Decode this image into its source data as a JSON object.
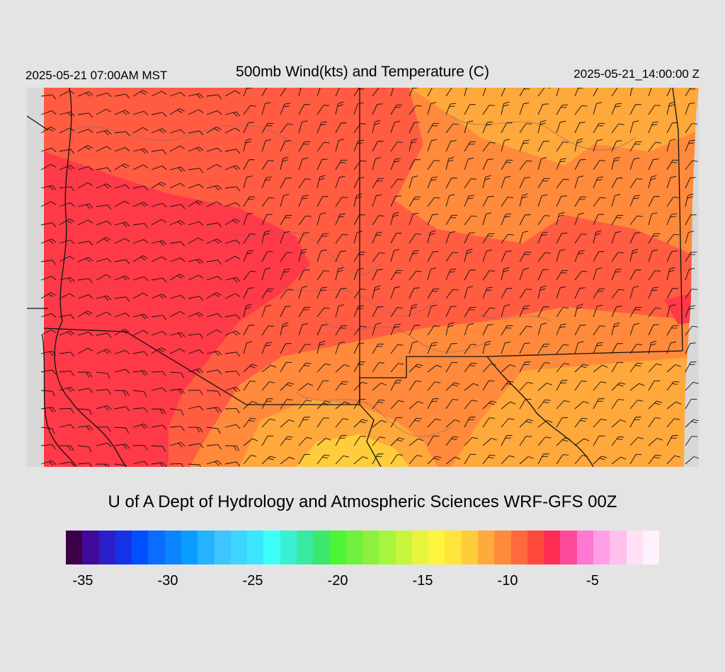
{
  "header": {
    "valid_local": "2025-05-21 07:00AM MST",
    "title": "500mb Wind(kts) and Temperature (C)",
    "valid_utc": "2025-05-21_14:00:00 Z"
  },
  "footer": {
    "credit": "U of A Dept of Hydrology and Atmospheric Sciences WRF-GFS 00Z"
  },
  "colorbar": {
    "colors": [
      "#3d0048",
      "#3f0a99",
      "#2a1fc8",
      "#1433e6",
      "#0050ff",
      "#0a6dff",
      "#0a85ff",
      "#0a9dff",
      "#23b3ff",
      "#3ec5ff",
      "#3dd6ff",
      "#3be6ff",
      "#3cfff8",
      "#3af0d2",
      "#3ae8a2",
      "#3ae86e",
      "#4cf53a",
      "#6ff03c",
      "#8cf03c",
      "#a7f53d",
      "#c6f53c",
      "#e6f53c",
      "#fff53c",
      "#ffe53c",
      "#ffcc3c",
      "#ffaa3c",
      "#ff8a3c",
      "#ff6a3c",
      "#ff483c",
      "#ff2e55",
      "#ff4a9a",
      "#ff78d2",
      "#ff9fe6",
      "#ffc0ee",
      "#ffe0f6",
      "#fff1fb"
    ],
    "tick_labels": [
      "-35",
      "-30",
      "-25",
      "-20",
      "-15",
      "-10",
      "-5"
    ]
  },
  "map": {
    "palette": {
      "cold": "#ff3a48",
      "mid": "#ff5c42",
      "warm": "#ff8a3c",
      "warmer": "#ffa83c",
      "yellow": "#ffcc3c",
      "missing": "#d8d8d8",
      "contour": "#7a6a6a",
      "border": "#111111",
      "barb": "#111111"
    }
  }
}
